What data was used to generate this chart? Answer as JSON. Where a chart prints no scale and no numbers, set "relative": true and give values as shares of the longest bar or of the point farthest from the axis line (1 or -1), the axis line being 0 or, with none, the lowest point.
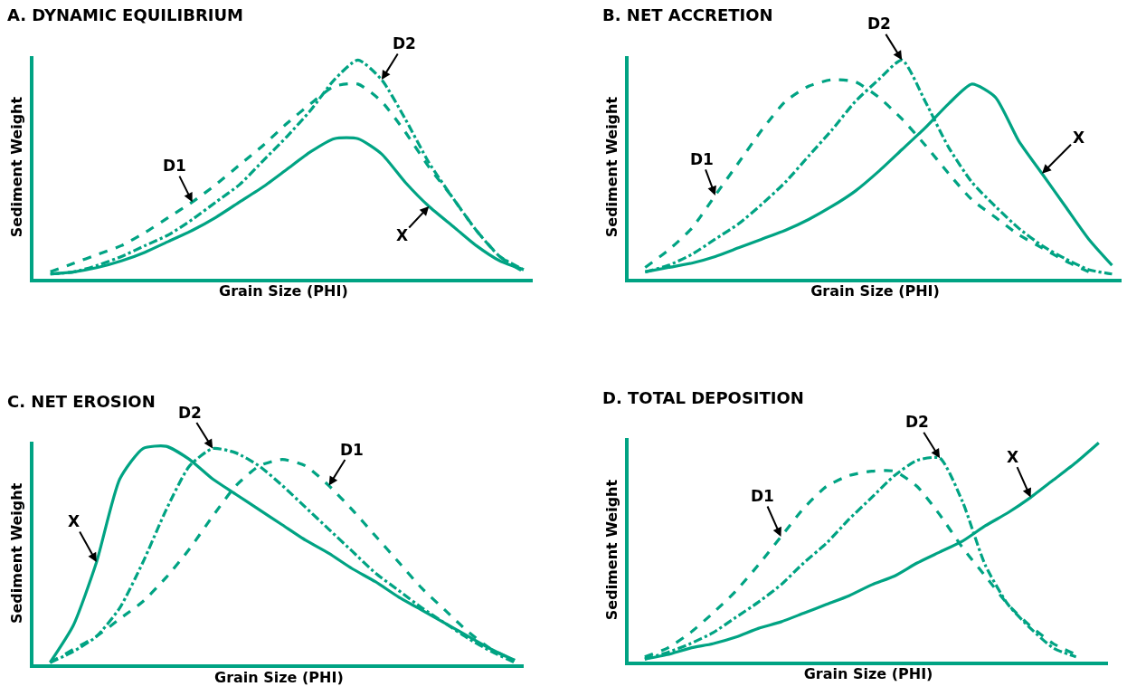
{
  "chart_data": [
    {
      "type": "line",
      "title": "A. DYNAMIC EQUILIBRIUM",
      "xlabel": "Grain Size (PHI)",
      "ylabel": "Sediment Weight",
      "relative": true,
      "legend": false,
      "categories": [
        null,
        null,
        null,
        null,
        null,
        null,
        null,
        null,
        null,
        null,
        null,
        null,
        null,
        null,
        null,
        null,
        null,
        null,
        null,
        null,
        null
      ],
      "series": [
        {
          "name": "X",
          "color": "#00a383",
          "line_style": "solid",
          "values": [
            0.02,
            0.03,
            0.05,
            0.08,
            0.12,
            0.17,
            0.22,
            0.28,
            0.35,
            0.42,
            0.5,
            0.58,
            0.64,
            0.64,
            0.57,
            0.44,
            0.33,
            0.24,
            0.15,
            0.08,
            0.04
          ]
        },
        {
          "name": "D1",
          "color": "#00a383",
          "line_style": "dashed",
          "values": [
            0.03,
            0.07,
            0.11,
            0.15,
            0.21,
            0.28,
            0.35,
            0.43,
            0.52,
            0.61,
            0.71,
            0.8,
            0.88,
            0.89,
            0.81,
            0.67,
            0.51,
            0.37,
            0.22,
            0.1,
            0.03
          ]
        },
        {
          "name": "D2",
          "color": "#00a383",
          "line_style": "dashdot",
          "values": [
            0.02,
            0.03,
            0.06,
            0.1,
            0.15,
            0.2,
            0.27,
            0.35,
            0.43,
            0.54,
            0.65,
            0.77,
            0.91,
            1,
            0.91,
            0.73,
            0.53,
            0.37,
            0.22,
            0.1,
            0.04
          ]
        }
      ]
    },
    {
      "type": "line",
      "title": "B. NET ACCRETION",
      "xlabel": "Grain Size (PHI)",
      "ylabel": "Sediment Weight",
      "relative": true,
      "legend": false,
      "categories": [
        null,
        null,
        null,
        null,
        null,
        null,
        null,
        null,
        null,
        null,
        null,
        null,
        null,
        null,
        null,
        null,
        null,
        null,
        null,
        null,
        null
      ],
      "series": [
        {
          "name": "D1",
          "color": "#00a383",
          "line_style": "dashed",
          "values": [
            0.05,
            0.13,
            0.23,
            0.38,
            0.53,
            0.68,
            0.81,
            0.88,
            0.91,
            0.9,
            0.83,
            0.73,
            0.61,
            0.48,
            0.36,
            0.28,
            0.2,
            0.14,
            0.08,
            0.03,
            null
          ]
        },
        {
          "name": "D2",
          "color": "#00a383",
          "line_style": "dashdot",
          "values": [
            0.03,
            0.06,
            0.11,
            0.18,
            0.25,
            0.34,
            0.44,
            0.56,
            0.68,
            0.81,
            0.91,
            1,
            0.81,
            0.6,
            0.44,
            0.33,
            0.23,
            0.15,
            0.09,
            0.04,
            0.02
          ]
        },
        {
          "name": "X",
          "color": "#00a383",
          "line_style": "solid",
          "values": [
            0.03,
            0.05,
            0.07,
            0.1,
            0.14,
            0.18,
            0.22,
            0.27,
            0.33,
            0.4,
            0.49,
            0.59,
            0.69,
            0.8,
            0.89,
            0.83,
            0.63,
            0.48,
            0.33,
            0.18,
            0.06
          ]
        }
      ]
    },
    {
      "type": "line",
      "title": "C. NET EROSION",
      "xlabel": "Grain Size (PHI)",
      "ylabel": "Sediment Weight",
      "relative": true,
      "legend": false,
      "categories": [
        null,
        null,
        null,
        null,
        null,
        null,
        null,
        null,
        null,
        null,
        null,
        null,
        null,
        null,
        null,
        null,
        null,
        null,
        null,
        null,
        null
      ],
      "series": [
        {
          "name": "X",
          "color": "#00a383",
          "line_style": "solid",
          "values": [
            0.01,
            0.18,
            0.47,
            0.85,
            0.99,
            1,
            0.94,
            0.85,
            0.78,
            0.71,
            0.64,
            0.57,
            0.51,
            0.44,
            0.38,
            0.31,
            0.25,
            0.19,
            0.13,
            0.07,
            0.02
          ]
        },
        {
          "name": "D2",
          "color": "#00a383",
          "line_style": "dashdot",
          "values": [
            0.01,
            0.06,
            0.13,
            0.26,
            0.47,
            0.71,
            0.91,
            0.99,
            0.97,
            0.91,
            0.82,
            0.72,
            0.62,
            0.52,
            0.42,
            0.34,
            0.26,
            0.19,
            0.12,
            0.06,
            0.01
          ]
        },
        {
          "name": "D1",
          "color": "#00a383",
          "line_style": "dashed",
          "values": [
            0.01,
            0.07,
            0.13,
            0.21,
            0.29,
            0.4,
            0.53,
            0.68,
            0.82,
            0.91,
            0.94,
            0.91,
            0.82,
            0.71,
            0.59,
            0.47,
            0.35,
            0.25,
            0.15,
            0.07,
            0.02
          ]
        }
      ]
    },
    {
      "type": "line",
      "title": "D. TOTAL DEPOSITION",
      "xlabel": "Grain Size (PHI)",
      "ylabel": "Sediment Weight",
      "relative": true,
      "legend": false,
      "categories": [
        null,
        null,
        null,
        null,
        null,
        null,
        null,
        null,
        null,
        null,
        null,
        null,
        null,
        null,
        null,
        null,
        null,
        null,
        null,
        null,
        null
      ],
      "series": [
        {
          "name": "D1",
          "color": "#00a383",
          "line_style": "dashed",
          "values": [
            0.02,
            0.06,
            0.13,
            0.22,
            0.32,
            0.44,
            0.57,
            0.7,
            0.8,
            0.85,
            0.87,
            0.87,
            0.8,
            0.67,
            0.52,
            0.39,
            0.26,
            0.16,
            0.08,
            0.03,
            null
          ]
        },
        {
          "name": "D2",
          "color": "#00a383",
          "line_style": "dashdot",
          "values": [
            0.01,
            0.04,
            0.08,
            0.13,
            0.2,
            0.27,
            0.35,
            0.45,
            0.54,
            0.65,
            0.75,
            0.85,
            0.92,
            0.93,
            0.73,
            0.44,
            0.26,
            0.15,
            0.06,
            0.02,
            null
          ]
        },
        {
          "name": "X",
          "color": "#00a383",
          "line_style": "solid",
          "values": [
            0.01,
            0.03,
            0.06,
            0.08,
            0.11,
            0.15,
            0.18,
            0.22,
            0.26,
            0.3,
            0.35,
            0.39,
            0.45,
            0.5,
            0.55,
            0.62,
            0.68,
            0.75,
            0.83,
            0.91,
            1
          ]
        }
      ]
    }
  ]
}
